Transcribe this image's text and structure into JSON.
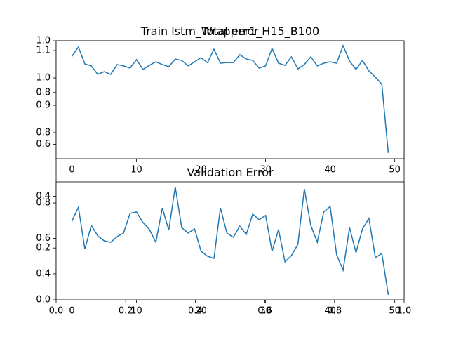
{
  "chart_data": [
    {
      "type": "axes",
      "title": "Total error",
      "xlim": [
        0,
        1
      ],
      "ylim": [
        0,
        1
      ],
      "xticks": [
        {
          "value": 0,
          "label": "0.0"
        },
        {
          "value": 0.2,
          "label": "0.2"
        },
        {
          "value": 0.4,
          "label": "0.4"
        },
        {
          "value": 0.6,
          "label": "0.6"
        },
        {
          "value": 0.8,
          "label": "0.8"
        },
        {
          "value": 1,
          "label": "1.0"
        }
      ],
      "yticks": [
        {
          "value": 0,
          "label": "0.0"
        },
        {
          "value": 0.2,
          "label": "0.2"
        },
        {
          "value": 0.4,
          "label": "0.4"
        },
        {
          "value": 0.6,
          "label": "0.6"
        },
        {
          "value": 0.8,
          "label": "0.8"
        },
        {
          "value": 1,
          "label": "1.0"
        }
      ]
    },
    {
      "type": "line",
      "title": "Train lstm_Wrapper1_H15_B100",
      "color": "#1f77b4",
      "x": [
        0,
        1,
        2,
        3,
        4,
        5,
        6,
        7,
        8,
        9,
        10,
        11,
        12,
        13,
        14,
        15,
        16,
        17,
        18,
        19,
        20,
        21,
        22,
        23,
        24,
        25,
        26,
        27,
        28,
        29,
        30,
        31,
        32,
        33,
        34,
        35,
        36,
        37,
        38,
        39,
        40,
        41,
        42,
        43,
        44,
        45,
        46,
        47,
        48,
        49
      ],
      "values": [
        1.079,
        1.113,
        1.051,
        1.044,
        1.013,
        1.023,
        1.013,
        1.049,
        1.044,
        1.036,
        1.067,
        1.031,
        1.046,
        1.059,
        1.049,
        1.041,
        1.069,
        1.064,
        1.044,
        1.059,
        1.074,
        1.056,
        1.105,
        1.054,
        1.056,
        1.056,
        1.085,
        1.069,
        1.064,
        1.036,
        1.044,
        1.108,
        1.054,
        1.046,
        1.077,
        1.033,
        1.049,
        1.077,
        1.044,
        1.054,
        1.059,
        1.054,
        1.118,
        1.062,
        1.031,
        1.064,
        1.026,
        1.003,
        0.977,
        0.726
      ],
      "xlim": [
        -2.45,
        51.45
      ],
      "ylim": [
        0.705,
        1.136
      ],
      "xticks": [
        0,
        10,
        20,
        30,
        40,
        50
      ],
      "yticks": [
        0.8,
        0.9,
        {
          "value": 1,
          "label": "1.0"
        },
        1.1
      ]
    },
    {
      "type": "line",
      "title": "Validation Error",
      "color": "#1f77b4",
      "x": [
        0,
        1,
        2,
        3,
        4,
        5,
        6,
        7,
        8,
        9,
        10,
        11,
        12,
        13,
        14,
        15,
        16,
        17,
        18,
        19,
        20,
        21,
        22,
        23,
        24,
        25,
        26,
        27,
        28,
        29,
        30,
        31,
        32,
        33,
        34,
        35,
        36,
        37,
        38,
        39,
        40,
        41,
        42,
        43,
        44,
        45,
        46,
        47,
        48,
        49
      ],
      "values": [
        0.697,
        0.776,
        0.539,
        0.673,
        0.614,
        0.586,
        0.578,
        0.61,
        0.63,
        0.741,
        0.749,
        0.689,
        0.65,
        0.578,
        0.772,
        0.646,
        0.891,
        0.661,
        0.63,
        0.653,
        0.527,
        0.499,
        0.487,
        0.772,
        0.63,
        0.606,
        0.669,
        0.622,
        0.737,
        0.705,
        0.729,
        0.527,
        0.65,
        0.467,
        0.503,
        0.566,
        0.879,
        0.673,
        0.578,
        0.749,
        0.78,
        0.507,
        0.42,
        0.661,
        0.519,
        0.653,
        0.713,
        0.491,
        0.515,
        0.281
      ],
      "xlim": [
        -2.45,
        51.45
      ],
      "ylim": [
        0.253,
        0.919
      ],
      "xticks": [
        0,
        10,
        20,
        30,
        40,
        50
      ],
      "yticks": [
        0.4,
        0.6,
        0.8
      ]
    }
  ]
}
